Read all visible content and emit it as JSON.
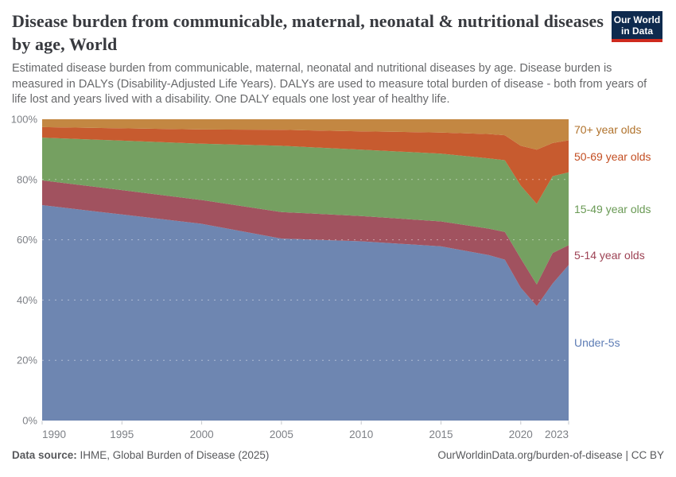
{
  "header": {
    "title": "Disease burden from communicable, maternal, neonatal & nutritional diseases by age, World",
    "subtitle": "Estimated disease burden from communicable, maternal, neonatal and nutritional diseases by age. Disease burden is measured in DALYs (Disability-Adjusted Life Years). DALYs are used to measure total burden of disease - both from years of life lost and years lived with a disability. One DALY equals one lost year of healthy life."
  },
  "logo": {
    "line1": "Our World",
    "line2": "in Data",
    "bg_color": "#0e2a4e",
    "stripe_color": "#cf2a1e"
  },
  "chart_data": {
    "type": "area",
    "stacked_percent": true,
    "title": "Disease burden from communicable, maternal, neonatal & nutritional diseases by age, World",
    "x": [
      1990,
      1995,
      2000,
      2005,
      2010,
      2015,
      2018,
      2019,
      2020,
      2021,
      2022,
      2023
    ],
    "series": [
      {
        "name": "Under-5s",
        "color": "#6e86b1",
        "label_color": "#5d7cb5",
        "values": [
          71.5,
          68.4,
          65.3,
          60.4,
          59.5,
          57.8,
          54.9,
          53.4,
          44.1,
          38.0,
          45.5,
          51.6
        ]
      },
      {
        "name": "5-14 year olds",
        "color": "#a1525f",
        "label_color": "#9d4254",
        "values": [
          8.2,
          8.1,
          7.9,
          8.8,
          8.4,
          8.3,
          8.8,
          9.2,
          9.7,
          7.2,
          10.1,
          6.6
        ]
      },
      {
        "name": "15-49 year olds",
        "color": "#75a061",
        "label_color": "#6a9a55",
        "values": [
          14.2,
          16.4,
          18.7,
          22.0,
          22.0,
          22.5,
          23.3,
          23.8,
          24.2,
          26.7,
          25.5,
          24.2
        ]
      },
      {
        "name": "50-69 year olds",
        "color": "#c75b2f",
        "label_color": "#c34e22",
        "values": [
          3.5,
          4.1,
          4.7,
          5.3,
          6.1,
          7.0,
          8.1,
          8.3,
          13.2,
          18.0,
          11.0,
          10.6
        ]
      },
      {
        "name": "70+ year olds",
        "color": "#c38742",
        "label_color": "#b0722b",
        "values": [
          2.6,
          3.0,
          3.4,
          3.5,
          4.0,
          4.4,
          4.9,
          5.3,
          8.8,
          10.1,
          7.9,
          7.0
        ]
      }
    ],
    "ylim": [
      0,
      100
    ],
    "yticks": [
      "0%",
      "20%",
      "40%",
      "60%",
      "80%",
      "100%"
    ],
    "ytick_values": [
      0,
      20,
      40,
      60,
      80,
      100
    ],
    "xticks": [
      1990,
      1995,
      2000,
      2005,
      2010,
      2015,
      2020,
      2023
    ],
    "xlim": [
      1990,
      2023
    ],
    "grid": "dashed horizontal",
    "legend_position": "right",
    "axis_text_color": "#7d8086"
  },
  "footer": {
    "source_label": "Data source:",
    "source_text": " IHME, Global Burden of Disease (2025)",
    "right_text": "OurWorldinData.org/burden-of-disease | CC BY"
  }
}
